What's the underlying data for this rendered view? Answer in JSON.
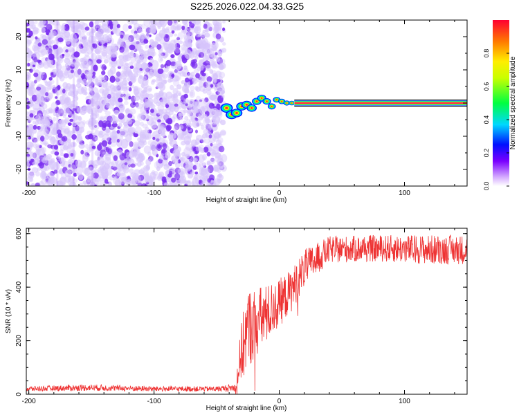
{
  "figure_title": "S225.2026.022.04.33.G25",
  "chart_data": [
    {
      "type": "heatmap",
      "title": "S225.2026.022.04.33.G25",
      "xlabel": "Height of straight line (km)",
      "ylabel": "Frequency (Hz)",
      "xlim": [
        -202,
        150
      ],
      "ylim": [
        -25,
        25
      ],
      "xticks": [
        -200,
        -100,
        0,
        100
      ],
      "yticks": [
        -20,
        -10,
        0,
        10,
        20
      ],
      "noise_region_x": [
        -202,
        -44
      ],
      "transition_region_x": [
        -44,
        12
      ],
      "tone_region_x": [
        12,
        150
      ],
      "tone_frequency_hz": 0,
      "tone_amplitude": 0.97,
      "tone_drift_points": [
        {
          "x": -42,
          "f": -1.5
        },
        {
          "x": -38,
          "f": -3.5
        },
        {
          "x": -34,
          "f": -3.0
        },
        {
          "x": -30,
          "f": -1.0
        },
        {
          "x": -26,
          "f": -0.5
        },
        {
          "x": -22,
          "f": -1.5
        },
        {
          "x": -18,
          "f": 0.5
        },
        {
          "x": -14,
          "f": 1.5
        },
        {
          "x": -10,
          "f": 0.5
        },
        {
          "x": -6,
          "f": -1.0
        },
        {
          "x": -2,
          "f": 1.0
        },
        {
          "x": 2,
          "f": 0.5
        },
        {
          "x": 6,
          "f": 0.0
        },
        {
          "x": 10,
          "f": 0.0
        }
      ],
      "colorbar": {
        "label": "Normalized spectral amplitude",
        "range": [
          0,
          1
        ],
        "ticks": [
          0.0,
          0.2,
          0.4,
          0.6,
          0.8
        ],
        "tick_labels": [
          "0.0",
          "0.2",
          "0.4",
          "0.6",
          "0.8"
        ]
      }
    },
    {
      "type": "line",
      "xlabel": "Height of straight line (km)",
      "ylabel": "SNR (10 * v/v)",
      "xlim": [
        -202,
        150
      ],
      "ylim": [
        0,
        620
      ],
      "xticks": [
        -200,
        -100,
        0,
        100
      ],
      "yticks": [
        0,
        200,
        400,
        600
      ],
      "series": [
        {
          "name": "SNR",
          "color": "#ee3333",
          "envelope": [
            {
              "x": -202,
              "mean": 20,
              "noise": 10
            },
            {
              "x": -150,
              "mean": 25,
              "noise": 12
            },
            {
              "x": -100,
              "mean": 20,
              "noise": 10
            },
            {
              "x": -50,
              "mean": 20,
              "noise": 10
            },
            {
              "x": -35,
              "mean": 25,
              "noise": 15
            },
            {
              "x": -30,
              "mean": 160,
              "noise": 120
            },
            {
              "x": -25,
              "mean": 250,
              "noise": 150
            },
            {
              "x": -20,
              "mean": 260,
              "noise": 140
            },
            {
              "x": -10,
              "mean": 300,
              "noise": 110
            },
            {
              "x": 0,
              "mean": 340,
              "noise": 90
            },
            {
              "x": 10,
              "mean": 390,
              "noise": 80
            },
            {
              "x": 20,
              "mean": 470,
              "noise": 70
            },
            {
              "x": 40,
              "mean": 540,
              "noise": 50
            },
            {
              "x": 80,
              "mean": 545,
              "noise": 50
            },
            {
              "x": 120,
              "mean": 540,
              "noise": 55
            },
            {
              "x": 150,
              "mean": 540,
              "noise": 55
            }
          ]
        }
      ]
    }
  ],
  "colors": {
    "axis": "#000000",
    "noise_light": "#d6c4fb",
    "noise_dark": "#7b2ff0",
    "snr_line": "#ee3333"
  }
}
